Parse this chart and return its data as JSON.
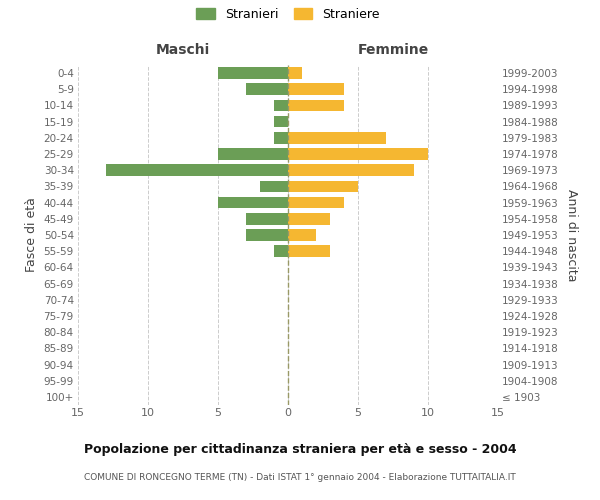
{
  "age_groups": [
    "100+",
    "95-99",
    "90-94",
    "85-89",
    "80-84",
    "75-79",
    "70-74",
    "65-69",
    "60-64",
    "55-59",
    "50-54",
    "45-49",
    "40-44",
    "35-39",
    "30-34",
    "25-29",
    "20-24",
    "15-19",
    "10-14",
    "5-9",
    "0-4"
  ],
  "birth_years": [
    "≤ 1903",
    "1904-1908",
    "1909-1913",
    "1914-1918",
    "1919-1923",
    "1924-1928",
    "1929-1933",
    "1934-1938",
    "1939-1943",
    "1944-1948",
    "1949-1953",
    "1954-1958",
    "1959-1963",
    "1964-1968",
    "1969-1973",
    "1974-1978",
    "1979-1983",
    "1984-1988",
    "1989-1993",
    "1994-1998",
    "1999-2003"
  ],
  "males": [
    0,
    0,
    0,
    0,
    0,
    0,
    0,
    0,
    0,
    1,
    3,
    3,
    5,
    2,
    13,
    5,
    1,
    1,
    1,
    3,
    5
  ],
  "females": [
    0,
    0,
    0,
    0,
    0,
    0,
    0,
    0,
    0,
    3,
    2,
    3,
    4,
    5,
    9,
    10,
    7,
    0,
    4,
    4,
    1
  ],
  "male_color": "#6b9e56",
  "female_color": "#f5b731",
  "xlim": 15,
  "title": "Popolazione per cittadinanza straniera per età e sesso - 2004",
  "subtitle": "COMUNE DI RONCEGNO TERME (TN) - Dati ISTAT 1° gennaio 2004 - Elaborazione TUTTAITALIA.IT",
  "xlabel_left": "Maschi",
  "xlabel_right": "Femmine",
  "ylabel_left": "Fasce di età",
  "ylabel_right": "Anni di nascita",
  "legend_male": "Stranieri",
  "legend_female": "Straniere",
  "bg_color": "#ffffff",
  "grid_color": "#cccccc",
  "tick_label_color": "#666666",
  "axis_label_color": "#444444",
  "center_line_color": "#999966",
  "xticks": [
    0,
    5,
    10,
    15
  ]
}
